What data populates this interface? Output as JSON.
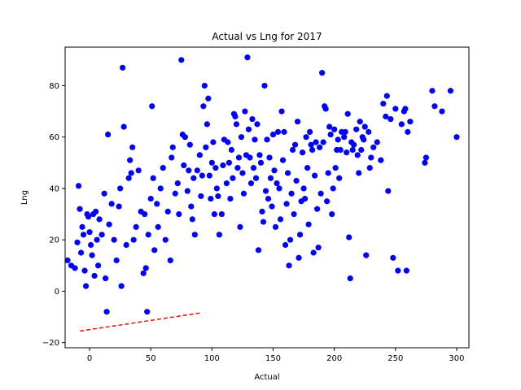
{
  "chart_data": {
    "type": "scatter",
    "title": "Actual vs Lng for 2017",
    "xlabel": "Actual",
    "ylabel": "Lng",
    "xlim": [
      -20,
      310
    ],
    "ylim": [
      -22,
      95
    ],
    "xticks": [
      0,
      50,
      100,
      150,
      200,
      250,
      300
    ],
    "yticks": [
      -20,
      0,
      20,
      40,
      60,
      80
    ],
    "grid": false,
    "legend": "none",
    "colors": {
      "points": "#0000ff",
      "fit_line": "#ff0000"
    },
    "series": [
      {
        "kind": "points",
        "points": [
          [
            -18,
            12
          ],
          [
            -15,
            10
          ],
          [
            -12,
            9
          ],
          [
            -10,
            19
          ],
          [
            -9,
            41
          ],
          [
            -8,
            32
          ],
          [
            -7,
            15
          ],
          [
            -6,
            25
          ],
          [
            -5,
            22
          ],
          [
            -4,
            8
          ],
          [
            -3,
            2
          ],
          [
            -2,
            30
          ],
          [
            -1,
            29
          ],
          [
            0,
            23
          ],
          [
            1,
            18
          ],
          [
            2,
            14
          ],
          [
            3,
            30
          ],
          [
            4,
            6
          ],
          [
            5,
            31
          ],
          [
            6,
            20
          ],
          [
            7,
            10
          ],
          [
            8,
            28
          ],
          [
            10,
            22
          ],
          [
            12,
            38
          ],
          [
            13,
            5
          ],
          [
            14,
            -8
          ],
          [
            15,
            61
          ],
          [
            16,
            26
          ],
          [
            18,
            34
          ],
          [
            20,
            20
          ],
          [
            22,
            12
          ],
          [
            24,
            33
          ],
          [
            25,
            40
          ],
          [
            26,
            2
          ],
          [
            27,
            87
          ],
          [
            28,
            64
          ],
          [
            30,
            18
          ],
          [
            32,
            44
          ],
          [
            33,
            51
          ],
          [
            34,
            46
          ],
          [
            35,
            56
          ],
          [
            36,
            20
          ],
          [
            38,
            25
          ],
          [
            40,
            47
          ],
          [
            42,
            31
          ],
          [
            44,
            7
          ],
          [
            45,
            30
          ],
          [
            46,
            9
          ],
          [
            47,
            -8
          ],
          [
            48,
            22
          ],
          [
            50,
            36
          ],
          [
            51,
            72
          ],
          [
            52,
            44
          ],
          [
            53,
            16
          ],
          [
            55,
            34
          ],
          [
            56,
            25
          ],
          [
            58,
            40
          ],
          [
            60,
            48
          ],
          [
            62,
            20
          ],
          [
            64,
            31
          ],
          [
            66,
            12
          ],
          [
            67,
            52
          ],
          [
            68,
            56
          ],
          [
            70,
            38
          ],
          [
            72,
            42
          ],
          [
            73,
            30
          ],
          [
            75,
            90
          ],
          [
            76,
            61
          ],
          [
            77,
            49
          ],
          [
            78,
            60
          ],
          [
            80,
            39
          ],
          [
            81,
            47
          ],
          [
            82,
            57
          ],
          [
            83,
            33
          ],
          [
            84,
            28
          ],
          [
            85,
            44
          ],
          [
            86,
            22
          ],
          [
            88,
            47
          ],
          [
            90,
            53
          ],
          [
            91,
            37
          ],
          [
            92,
            45
          ],
          [
            93,
            72
          ],
          [
            94,
            80
          ],
          [
            95,
            56
          ],
          [
            96,
            65
          ],
          [
            97,
            75
          ],
          [
            98,
            45
          ],
          [
            99,
            36
          ],
          [
            100,
            50
          ],
          [
            101,
            58
          ],
          [
            102,
            30
          ],
          [
            103,
            48
          ],
          [
            104,
            40
          ],
          [
            105,
            37
          ],
          [
            106,
            22
          ],
          [
            108,
            30
          ],
          [
            109,
            49
          ],
          [
            110,
            59
          ],
          [
            112,
            42
          ],
          [
            113,
            58
          ],
          [
            114,
            50
          ],
          [
            115,
            36
          ],
          [
            116,
            55
          ],
          [
            117,
            44
          ],
          [
            118,
            69
          ],
          [
            119,
            68
          ],
          [
            120,
            65
          ],
          [
            121,
            48
          ],
          [
            122,
            52
          ],
          [
            123,
            25
          ],
          [
            124,
            60
          ],
          [
            125,
            46
          ],
          [
            126,
            38
          ],
          [
            127,
            70
          ],
          [
            128,
            53
          ],
          [
            129,
            91
          ],
          [
            130,
            63
          ],
          [
            131,
            52
          ],
          [
            132,
            42
          ],
          [
            133,
            67
          ],
          [
            134,
            48
          ],
          [
            135,
            59
          ],
          [
            136,
            44
          ],
          [
            137,
            65
          ],
          [
            138,
            16
          ],
          [
            139,
            53
          ],
          [
            140,
            50
          ],
          [
            141,
            31
          ],
          [
            142,
            27
          ],
          [
            143,
            80
          ],
          [
            144,
            39
          ],
          [
            145,
            59
          ],
          [
            146,
            36
          ],
          [
            147,
            52
          ],
          [
            148,
            44
          ],
          [
            149,
            33
          ],
          [
            150,
            61
          ],
          [
            151,
            47
          ],
          [
            152,
            25
          ],
          [
            153,
            42
          ],
          [
            154,
            62
          ],
          [
            155,
            40
          ],
          [
            156,
            28
          ],
          [
            157,
            70
          ],
          [
            158,
            51
          ],
          [
            159,
            62
          ],
          [
            160,
            18
          ],
          [
            161,
            34
          ],
          [
            162,
            46
          ],
          [
            163,
            10
          ],
          [
            164,
            20
          ],
          [
            165,
            38
          ],
          [
            166,
            55
          ],
          [
            167,
            30
          ],
          [
            168,
            57
          ],
          [
            169,
            43
          ],
          [
            170,
            66
          ],
          [
            171,
            13
          ],
          [
            172,
            22
          ],
          [
            173,
            35
          ],
          [
            174,
            54
          ],
          [
            175,
            40
          ],
          [
            176,
            36
          ],
          [
            177,
            60
          ],
          [
            178,
            48
          ],
          [
            179,
            26
          ],
          [
            180,
            62
          ],
          [
            181,
            57
          ],
          [
            182,
            55
          ],
          [
            183,
            15
          ],
          [
            184,
            45
          ],
          [
            185,
            58
          ],
          [
            186,
            32
          ],
          [
            187,
            17
          ],
          [
            188,
            56
          ],
          [
            189,
            38
          ],
          [
            190,
            85
          ],
          [
            191,
            58
          ],
          [
            192,
            72
          ],
          [
            193,
            71
          ],
          [
            194,
            35
          ],
          [
            195,
            46
          ],
          [
            196,
            64
          ],
          [
            197,
            61
          ],
          [
            198,
            30
          ],
          [
            199,
            40
          ],
          [
            200,
            63
          ],
          [
            201,
            48
          ],
          [
            202,
            55
          ],
          [
            203,
            59
          ],
          [
            204,
            44
          ],
          [
            205,
            55
          ],
          [
            206,
            62
          ],
          [
            208,
            60
          ],
          [
            209,
            62
          ],
          [
            210,
            54
          ],
          [
            211,
            69
          ],
          [
            212,
            21
          ],
          [
            213,
            5
          ],
          [
            214,
            58
          ],
          [
            215,
            55
          ],
          [
            216,
            57
          ],
          [
            218,
            63
          ],
          [
            219,
            53
          ],
          [
            220,
            46
          ],
          [
            221,
            66
          ],
          [
            222,
            55
          ],
          [
            223,
            60
          ],
          [
            224,
            59
          ],
          [
            225,
            64
          ],
          [
            226,
            14
          ],
          [
            228,
            62
          ],
          [
            229,
            48
          ],
          [
            230,
            52
          ],
          [
            232,
            56
          ],
          [
            235,
            58
          ],
          [
            238,
            51
          ],
          [
            240,
            73
          ],
          [
            242,
            68
          ],
          [
            243,
            76
          ],
          [
            244,
            39
          ],
          [
            246,
            67
          ],
          [
            248,
            13
          ],
          [
            250,
            71
          ],
          [
            252,
            8
          ],
          [
            255,
            65
          ],
          [
            257,
            70
          ],
          [
            258,
            71
          ],
          [
            259,
            8
          ],
          [
            260,
            62
          ],
          [
            262,
            66
          ],
          [
            274,
            50
          ],
          [
            275,
            52
          ],
          [
            280,
            78
          ],
          [
            282,
            72
          ],
          [
            288,
            70
          ],
          [
            295,
            78
          ],
          [
            300,
            60
          ]
        ]
      },
      {
        "kind": "dashed_line",
        "points": [
          [
            -8,
            -15.5
          ],
          [
            90,
            -8.5
          ]
        ]
      }
    ]
  }
}
